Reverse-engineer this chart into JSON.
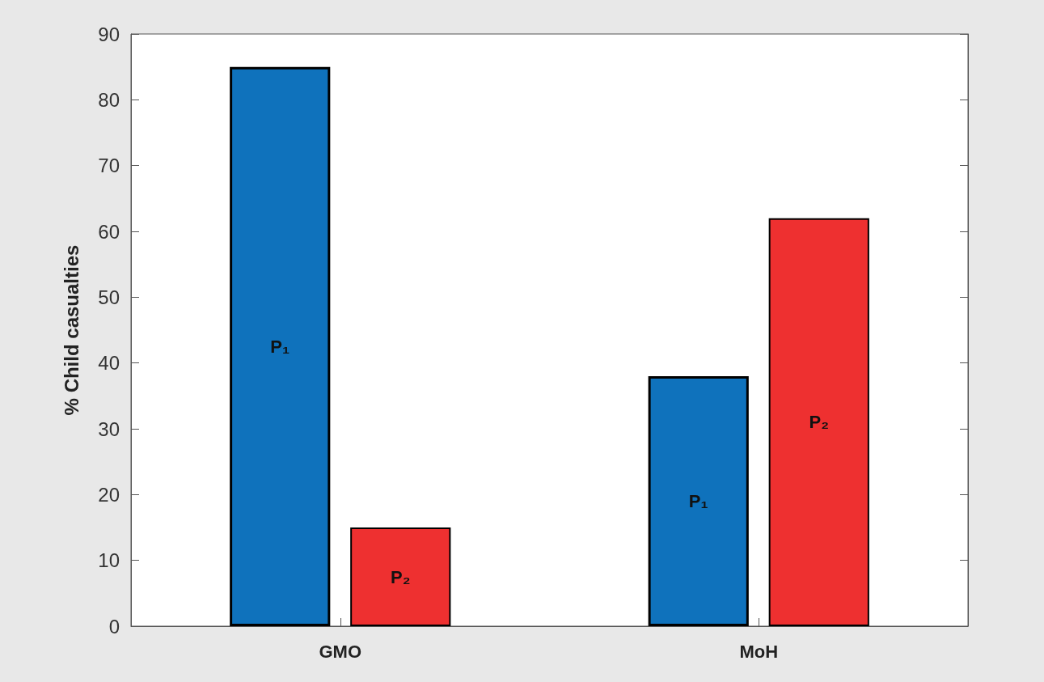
{
  "chart_data": {
    "type": "bar",
    "ylabel": "% Child casualties",
    "categories": [
      "GMO",
      "MoH"
    ],
    "series": [
      {
        "name": "P₁",
        "color": "#0f72bc",
        "values": [
          85,
          38
        ]
      },
      {
        "name": "P₂",
        "color": "#ee3030",
        "values": [
          15,
          62
        ]
      }
    ],
    "ylim": [
      0,
      90
    ],
    "yticks": [
      0,
      10,
      20,
      30,
      40,
      50,
      60,
      70,
      80,
      90
    ],
    "grid": false,
    "legend": false
  }
}
